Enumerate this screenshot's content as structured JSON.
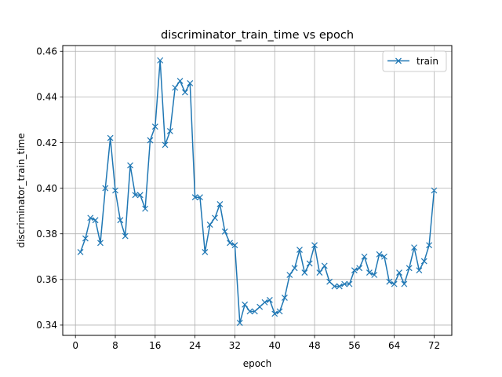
{
  "chart_data": {
    "type": "line",
    "title": "discriminator_train_time vs epoch",
    "xlabel": "epoch",
    "ylabel": "discriminator_train_time",
    "xlim": [
      -2.55,
      75.55
    ],
    "ylim": [
      0.3355,
      0.4625
    ],
    "xticks": [
      0,
      8,
      16,
      24,
      32,
      40,
      48,
      56,
      64,
      72
    ],
    "yticks": [
      0.34,
      0.36,
      0.38,
      0.4,
      0.42,
      0.44,
      0.46
    ],
    "ytick_labels": [
      "0.34",
      "0.36",
      "0.38",
      "0.40",
      "0.42",
      "0.44",
      "0.46"
    ],
    "grid": true,
    "legend_position": "top-right",
    "line_color": "#1f77b4",
    "marker": "x",
    "series": [
      {
        "name": "train",
        "x": [
          1,
          2,
          3,
          4,
          5,
          6,
          7,
          8,
          9,
          10,
          11,
          12,
          13,
          14,
          15,
          16,
          17,
          18,
          19,
          20,
          21,
          22,
          23,
          24,
          25,
          26,
          27,
          28,
          29,
          30,
          31,
          32,
          33,
          34,
          35,
          36,
          37,
          38,
          39,
          40,
          41,
          42,
          43,
          44,
          45,
          46,
          47,
          48,
          49,
          50,
          51,
          52,
          53,
          54,
          55,
          56,
          57,
          58,
          59,
          60,
          61,
          62,
          63,
          64,
          65,
          66,
          67,
          68,
          69,
          70,
          71,
          72
        ],
        "values": [
          0.372,
          0.378,
          0.387,
          0.386,
          0.376,
          0.4,
          0.422,
          0.399,
          0.386,
          0.379,
          0.41,
          0.397,
          0.397,
          0.391,
          0.421,
          0.427,
          0.456,
          0.419,
          0.425,
          0.444,
          0.447,
          0.442,
          0.446,
          0.396,
          0.396,
          0.372,
          0.384,
          0.387,
          0.393,
          0.381,
          0.376,
          0.375,
          0.341,
          0.349,
          0.346,
          0.346,
          0.348,
          0.35,
          0.351,
          0.345,
          0.346,
          0.352,
          0.362,
          0.365,
          0.373,
          0.363,
          0.367,
          0.375,
          0.363,
          0.366,
          0.359,
          0.357,
          0.357,
          0.358,
          0.358,
          0.364,
          0.365,
          0.37,
          0.363,
          0.362,
          0.371,
          0.37,
          0.359,
          0.358,
          0.363,
          0.358,
          0.365,
          0.374,
          0.364,
          0.368,
          0.375,
          0.399
        ]
      }
    ]
  }
}
